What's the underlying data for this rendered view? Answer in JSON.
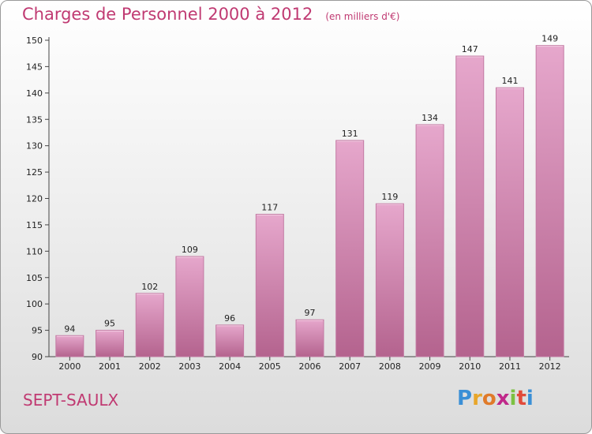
{
  "chart_data": {
    "type": "bar",
    "title": "Charges de Personnel 2000 à 2012",
    "subtitle": "(en milliers d'€)",
    "categories": [
      "2000",
      "2001",
      "2002",
      "2003",
      "2004",
      "2005",
      "2006",
      "2007",
      "2008",
      "2009",
      "2010",
      "2011",
      "2012"
    ],
    "values": [
      94,
      95,
      102,
      109,
      96,
      117,
      97,
      131,
      119,
      134,
      147,
      141,
      149
    ],
    "data_labels": [
      "94",
      "95",
      "102",
      "109",
      "96",
      "117",
      "97",
      "131",
      "119",
      "134",
      "147",
      "141",
      "149"
    ],
    "ylim": [
      90,
      150
    ],
    "yticks": [
      90,
      95,
      100,
      105,
      110,
      115,
      120,
      125,
      130,
      135,
      140,
      145,
      150
    ],
    "xlabel": "",
    "ylabel": "",
    "grid": false,
    "bar_color": "#d98fb8"
  },
  "footer": {
    "commune": "SEPT-SAULX",
    "logo_letters": [
      "P",
      "r",
      "o",
      "x",
      "i",
      "t",
      "i"
    ],
    "logo_colors": [
      "#3a8fd6",
      "#e8a62a",
      "#e07b2a",
      "#c0288a",
      "#7cc142",
      "#e24a3a",
      "#3a8fd6"
    ]
  }
}
